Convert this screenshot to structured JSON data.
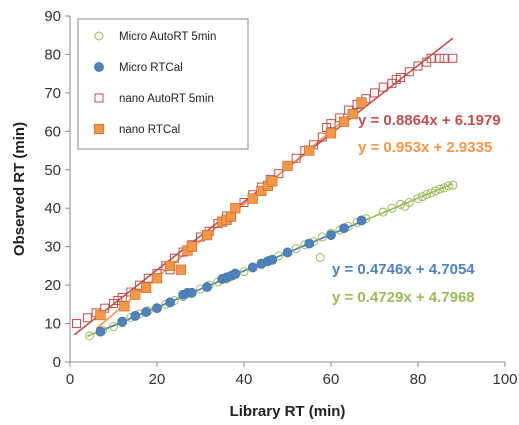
{
  "chart_data": {
    "type": "scatter",
    "xlabel": "Library RT (min)",
    "ylabel": "Observed RT (min)",
    "xlim": [
      0,
      100
    ],
    "ylim": [
      0,
      90
    ],
    "xticks": [
      0,
      20,
      40,
      60,
      80,
      100
    ],
    "yticks": [
      0,
      10,
      20,
      30,
      40,
      50,
      60,
      70,
      80,
      90
    ],
    "grid": false,
    "legend_position": "top-left",
    "series": [
      {
        "name": "Micro AutoRT 5min",
        "marker": "circle-open",
        "color": "#9BBB59",
        "trendline": {
          "slope": 0.4729,
          "intercept": 4.7968,
          "x_range": [
            4,
            88
          ]
        },
        "points": [
          [
            4.5,
            6.8
          ],
          [
            7.5,
            8.2
          ],
          [
            10,
            9.2
          ],
          [
            12,
            10.2
          ],
          [
            14,
            11.6
          ],
          [
            16,
            12.5
          ],
          [
            18,
            13.3
          ],
          [
            20,
            14.1
          ],
          [
            22,
            15.0
          ],
          [
            24,
            16.0
          ],
          [
            26,
            17.0
          ],
          [
            28,
            18.0
          ],
          [
            30,
            19.0
          ],
          [
            32,
            20.0
          ],
          [
            34,
            20.8
          ],
          [
            36,
            21.6
          ],
          [
            38,
            22.6
          ],
          [
            40,
            23.5
          ],
          [
            42,
            24.5
          ],
          [
            44,
            25.3
          ],
          [
            46,
            26.5
          ],
          [
            48,
            27.6
          ],
          [
            50,
            28.5
          ],
          [
            52,
            29.5
          ],
          [
            54,
            30.5
          ],
          [
            56,
            31.3
          ],
          [
            57.5,
            27.2
          ],
          [
            58,
            32.5
          ],
          [
            60,
            33.5
          ],
          [
            62,
            34.3
          ],
          [
            64,
            35.3
          ],
          [
            66,
            36.3
          ],
          [
            68,
            37.3
          ],
          [
            72,
            39.0
          ],
          [
            74,
            40.0
          ],
          [
            76,
            41.0
          ],
          [
            77,
            40.5
          ],
          [
            78,
            41.5
          ],
          [
            80,
            42.5
          ],
          [
            81,
            43.0
          ],
          [
            82,
            43.6
          ],
          [
            83,
            44.0
          ],
          [
            84,
            44.5
          ],
          [
            85,
            45.0
          ],
          [
            86,
            45.3
          ],
          [
            87,
            45.8
          ],
          [
            88,
            46.0
          ]
        ]
      },
      {
        "name": "Micro RTCal",
        "marker": "circle-filled",
        "color": "#4F81BD",
        "trendline": {
          "slope": 0.4746,
          "intercept": 4.7054,
          "x_range": [
            6,
            68
          ]
        },
        "points": [
          [
            7,
            7.9
          ],
          [
            12,
            10.5
          ],
          [
            15,
            12.0
          ],
          [
            17.5,
            13.0
          ],
          [
            20,
            14.0
          ],
          [
            23,
            15.5
          ],
          [
            26,
            17.5
          ],
          [
            27,
            18.0
          ],
          [
            28,
            18.0
          ],
          [
            31.5,
            19.5
          ],
          [
            35,
            21.6
          ],
          [
            36,
            22.0
          ],
          [
            37,
            22.4
          ],
          [
            38,
            23.0
          ],
          [
            42,
            24.6
          ],
          [
            44,
            25.6
          ],
          [
            45.5,
            26.2
          ],
          [
            46.5,
            26.6
          ],
          [
            50,
            28.5
          ],
          [
            55,
            30.8
          ],
          [
            60,
            33.0
          ],
          [
            63,
            34.8
          ],
          [
            67,
            36.8
          ]
        ]
      },
      {
        "name": "nano AutoRT 5min",
        "marker": "square-open",
        "color": "#C0504D",
        "trendline": {
          "slope": 0.8864,
          "intercept": 6.1979,
          "x_range": [
            1,
            88
          ]
        },
        "points": [
          [
            1.5,
            10.0
          ],
          [
            4,
            11.5
          ],
          [
            6,
            12.8
          ],
          [
            8,
            14.0
          ],
          [
            10,
            15.2
          ],
          [
            11,
            16.0
          ],
          [
            12,
            16.8
          ],
          [
            14,
            18.2
          ],
          [
            16,
            20.0
          ],
          [
            18,
            21.8
          ],
          [
            20,
            23.0
          ],
          [
            22,
            25.0
          ],
          [
            23,
            24.0
          ],
          [
            24,
            27.0
          ],
          [
            26,
            28.6
          ],
          [
            28,
            30.5
          ],
          [
            30,
            32.5
          ],
          [
            32,
            34.0
          ],
          [
            34,
            36.0
          ],
          [
            36,
            38.0
          ],
          [
            38,
            40.0
          ],
          [
            40,
            41.5
          ],
          [
            42,
            43.5
          ],
          [
            44,
            45.5
          ],
          [
            46,
            47.5
          ],
          [
            48,
            49.0
          ],
          [
            50,
            51.0
          ],
          [
            52,
            53.0
          ],
          [
            54,
            55.0
          ],
          [
            56,
            56.5
          ],
          [
            58,
            58.5
          ],
          [
            59,
            61.0
          ],
          [
            60,
            62.0
          ],
          [
            62,
            63.5
          ],
          [
            64,
            65.5
          ],
          [
            66,
            67.0
          ],
          [
            68,
            68.5
          ],
          [
            70,
            70.0
          ],
          [
            72,
            71.5
          ],
          [
            74,
            72.5
          ],
          [
            75,
            73.5
          ],
          [
            76,
            74.0
          ],
          [
            78,
            75.5
          ],
          [
            80,
            77.0
          ],
          [
            82,
            78.0
          ],
          [
            83,
            79.0
          ],
          [
            85,
            79.0
          ],
          [
            86,
            79.0
          ],
          [
            88,
            79.0
          ]
        ]
      },
      {
        "name": "nano RTCal",
        "marker": "square-filled",
        "color": "#F79646",
        "trendline": {
          "slope": 0.953,
          "intercept": 2.9335,
          "x_range": [
            6,
            68
          ]
        },
        "points": [
          [
            7,
            12.2
          ],
          [
            12.5,
            14.5
          ],
          [
            15,
            17.5
          ],
          [
            17.5,
            19.3
          ],
          [
            20,
            21.8
          ],
          [
            23,
            25.0
          ],
          [
            25.5,
            24.0
          ],
          [
            27,
            29.0
          ],
          [
            28,
            30.0
          ],
          [
            31.5,
            33.0
          ],
          [
            35,
            36.5
          ],
          [
            36,
            37.0
          ],
          [
            37,
            37.8
          ],
          [
            38,
            40.0
          ],
          [
            42,
            42.5
          ],
          [
            44,
            44.5
          ],
          [
            45.5,
            45.8
          ],
          [
            46.5,
            47.0
          ],
          [
            50,
            51.0
          ],
          [
            55,
            55.0
          ],
          [
            60,
            59.5
          ],
          [
            63,
            62.5
          ],
          [
            65,
            64.5
          ],
          [
            67,
            67.5
          ]
        ]
      }
    ],
    "annotations": [
      {
        "text": "y = 0.8864x + 6.1979",
        "color": "#C0504D"
      },
      {
        "text": "y = 0.953x + 2.9335",
        "color": "#F79646"
      },
      {
        "text": "y = 0.4746x + 4.7054",
        "color": "#4F81BD"
      },
      {
        "text": "y = 0.4729x + 4.7968",
        "color": "#9BBB59"
      }
    ]
  }
}
